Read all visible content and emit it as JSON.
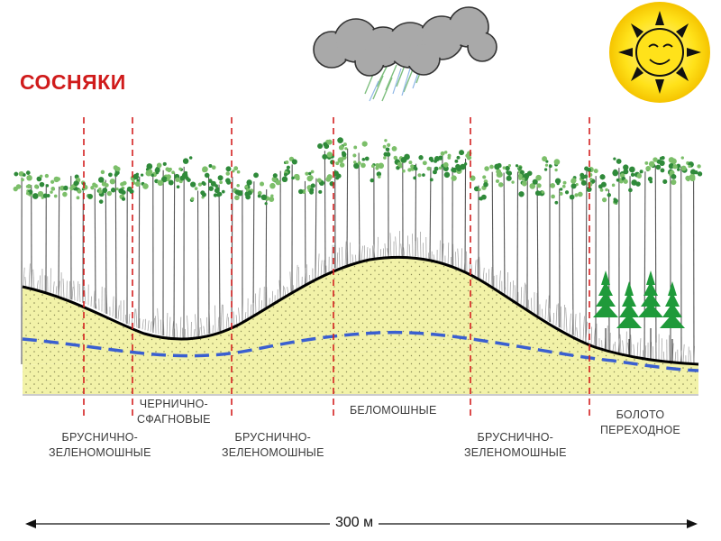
{
  "title": "СОСНЯКИ",
  "zones": [
    {
      "lines": [
        "БРУСНИЧНО-",
        "ЗЕЛЕНОМОШНЫЕ"
      ]
    },
    {
      "lines": [
        "ЧЕРНИЧНО-",
        "СФАГНОВЫЕ"
      ]
    },
    {
      "lines": [
        "БРУСНИЧНО-",
        "ЗЕЛЕНОМОШНЫЕ"
      ]
    },
    {
      "lines": [
        "БЕЛОМОШНЫЕ"
      ]
    },
    {
      "lines": [
        "БРУСНИЧНО-",
        "ЗЕЛЕНОМОШНЫЕ"
      ]
    },
    {
      "lines": [
        "БОЛОТО",
        "ПЕРЕХОДНОЕ"
      ]
    }
  ],
  "scale_label": "300 м",
  "colors": {
    "title": "#d01b1b",
    "soil": "#f2f2a8",
    "ground_line": "#000000",
    "water_table": "#3a5fd0",
    "divider": "#d42020",
    "tree_crown": "#2f8a3a",
    "sun": "#ffe21a"
  },
  "icons": [
    "rain-cloud-icon",
    "sun-icon"
  ]
}
